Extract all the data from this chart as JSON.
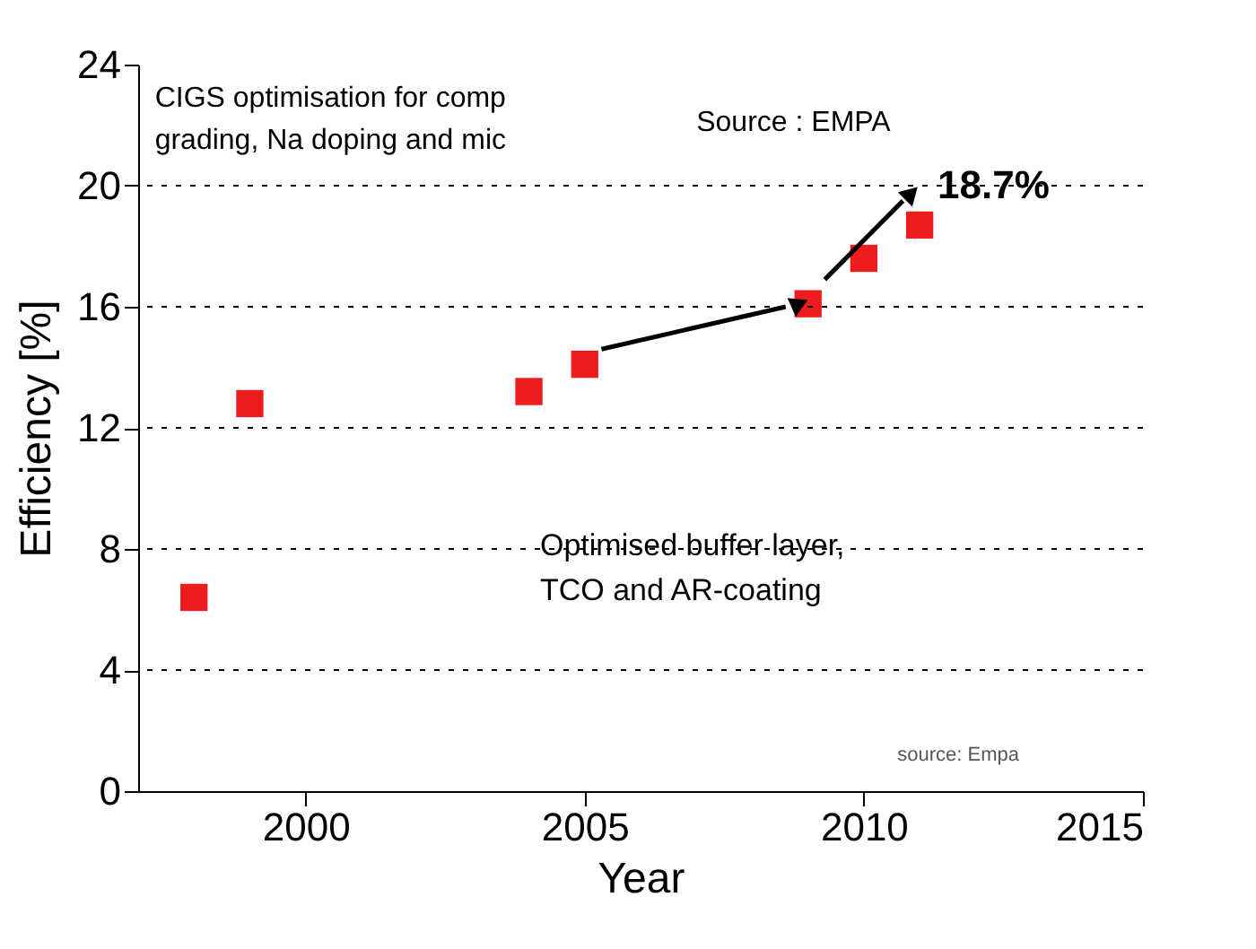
{
  "chart_data": {
    "type": "scatter",
    "xlabel": "Year",
    "ylabel": "Efficiency [%]",
    "x": [
      1998,
      1999,
      2004,
      2005,
      2009,
      2010,
      2011
    ],
    "series": [
      {
        "color": "#ee1c1c",
        "values": [
          6.4,
          12.8,
          13.2,
          14.1,
          16.1,
          17.6,
          18.7
        ]
      }
    ],
    "xlim": [
      1997,
      2015
    ],
    "xticks": [
      2000,
      2005,
      2010,
      2015
    ],
    "ylim": [
      0,
      24
    ],
    "yticks": [
      0,
      4,
      8,
      12,
      16,
      20,
      24
    ],
    "grid": "y",
    "marker": "square",
    "annotations": [
      "CIGS optimisation for comp",
      "grading, Na doping and mic",
      "Source : EMPA",
      {
        "text": "18.7%",
        "x": 2011,
        "y": 18.7
      },
      "Optimised buffer layer,",
      "TCO and AR-coating",
      "source: Empa"
    ]
  }
}
